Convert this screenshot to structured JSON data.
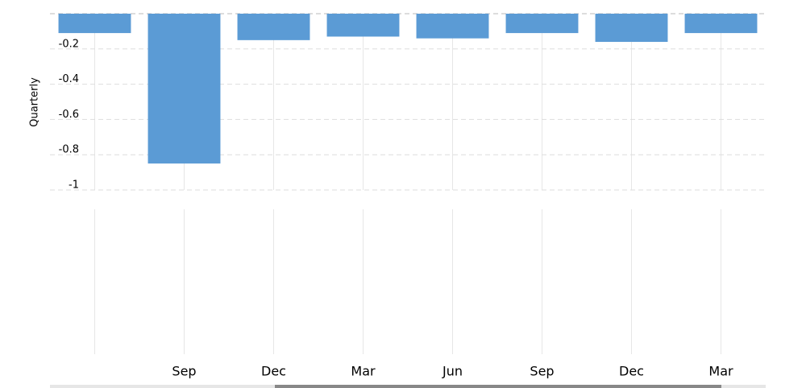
{
  "chart_data": {
    "type": "bar",
    "y_label": "Quarterly",
    "categories": [
      null,
      "Sep",
      "Dec",
      "Mar",
      "Jun",
      "Sep",
      "Dec",
      "Mar"
    ],
    "values": [
      -0.11,
      -0.85,
      -0.15,
      -0.13,
      -0.14,
      -0.11,
      -0.16,
      -0.11
    ],
    "color": "#5b9bd5",
    "ylim": [
      -1.0,
      0
    ],
    "yticks": [
      -0.2,
      -0.4,
      -0.6,
      -0.8,
      -1.0
    ],
    "grid": true
  }
}
